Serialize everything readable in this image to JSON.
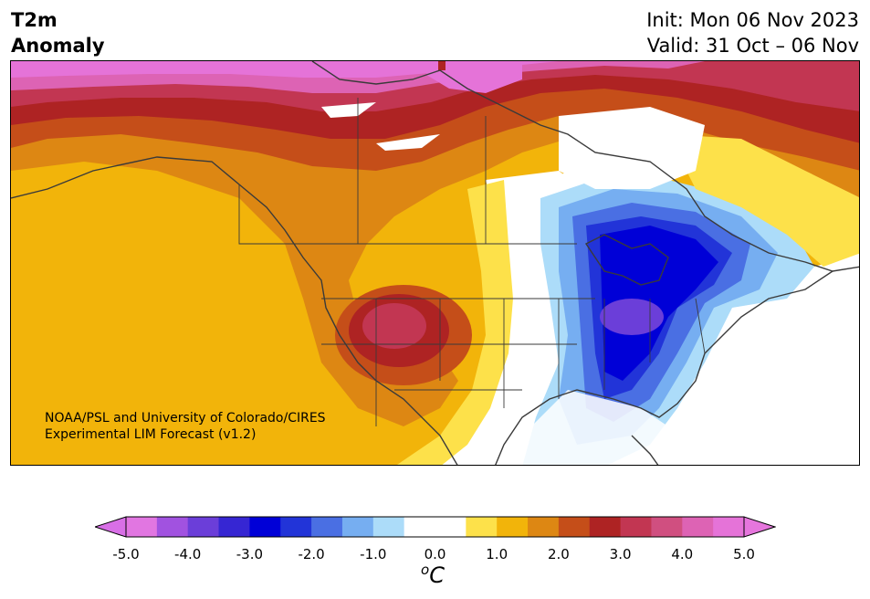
{
  "header": {
    "variable": "T2m",
    "variable_sub": "Anomaly",
    "init": "Init: Mon 06 Nov 2023",
    "valid": "Valid: 31 Oct – 06 Nov"
  },
  "credit": {
    "line1": "NOAA/PSL and University of Colorado/CIRES",
    "line2": "Experimental LIM Forecast (v1.2)"
  },
  "colorbar": {
    "unit_sup": "o",
    "unit": "C",
    "ticks": [
      "-5.0",
      "-4.0",
      "-3.0",
      "-2.0",
      "-1.0",
      "0.0",
      "1.0",
      "2.0",
      "3.0",
      "4.0",
      "5.0"
    ],
    "colors": [
      "#e176e1",
      "#a152e0",
      "#6b3ed9",
      "#3626d3",
      "#0000d7",
      "#2234d8",
      "#4a6fe3",
      "#76aef1",
      "#acdcf9",
      "#ffffff",
      "#ffffff",
      "#fde14a",
      "#f2b40a",
      "#dd8713",
      "#c54e19",
      "#ae2323",
      "#c23652",
      "#d04f80",
      "#dd63b4",
      "#e573d8"
    ],
    "extend_low": "#d86fe6",
    "extend_high": "#e676dd"
  }
}
